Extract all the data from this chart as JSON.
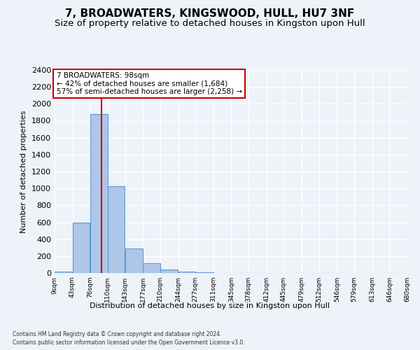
{
  "title": "7, BROADWATERS, KINGSWOOD, HULL, HU7 3NF",
  "subtitle": "Size of property relative to detached houses in Kingston upon Hull",
  "xlabel_bottom": "Distribution of detached houses by size in Kingston upon Hull",
  "ylabel": "Number of detached properties",
  "footnote1": "Contains HM Land Registry data © Crown copyright and database right 2024.",
  "footnote2": "Contains public sector information licensed under the Open Government Licence v3.0.",
  "annotation_line1": "7 BROADWATERS: 98sqm",
  "annotation_line2": "← 42% of detached houses are smaller (1,684)",
  "annotation_line3": "57% of semi-detached houses are larger (2,258) →",
  "bar_edges": [
    9,
    43,
    76,
    110,
    143,
    177,
    210,
    244,
    277,
    311,
    345,
    378,
    412,
    445,
    479,
    512,
    546,
    579,
    613,
    646,
    680
  ],
  "bar_heights": [
    15,
    600,
    1880,
    1030,
    290,
    115,
    40,
    20,
    12,
    0,
    0,
    0,
    0,
    0,
    0,
    0,
    0,
    0,
    0,
    0
  ],
  "bar_color": "#aec6e8",
  "bar_edge_color": "#5b9bd5",
  "red_line_x": 98,
  "ylim": [
    0,
    2400
  ],
  "yticks": [
    0,
    200,
    400,
    600,
    800,
    1000,
    1200,
    1400,
    1600,
    1800,
    2000,
    2200,
    2400
  ],
  "background_color": "#eef2f9",
  "grid_color": "#ffffff",
  "annotation_box_edge_color": "#cc0000",
  "title_fontsize": 11,
  "subtitle_fontsize": 9.5
}
